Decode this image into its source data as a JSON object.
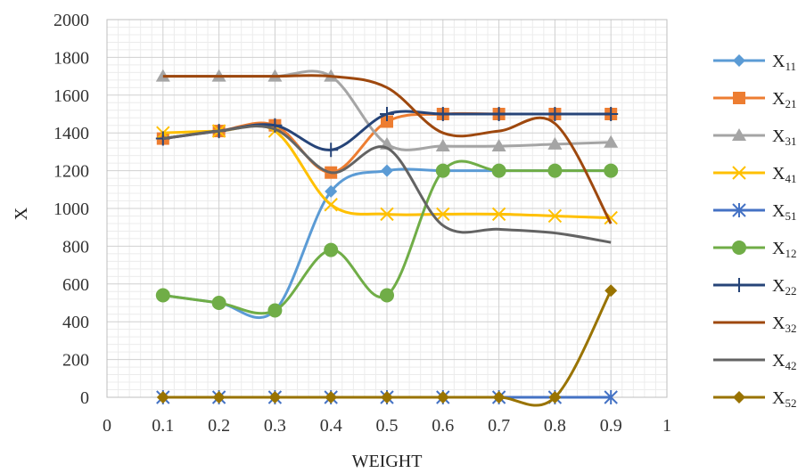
{
  "chart_data": {
    "type": "line",
    "title": "",
    "xlabel": "WEIGHT",
    "ylabel": "X",
    "xlim": [
      0,
      1
    ],
    "ylim": [
      0,
      2000
    ],
    "xticks": [
      "0",
      "0.1",
      "0.2",
      "0.3",
      "0.4",
      "0.5",
      "0.6",
      "0.7",
      "0.8",
      "0.9",
      "1"
    ],
    "yticks": [
      "0",
      "200",
      "400",
      "600",
      "800",
      "1000",
      "1200",
      "1400",
      "1600",
      "1800",
      "2000"
    ],
    "grid": true,
    "legend_position": "right",
    "x": [
      0.1,
      0.2,
      0.3,
      0.4,
      0.5,
      0.6,
      0.7,
      0.8,
      0.9
    ],
    "series": [
      {
        "name": "X",
        "sub": "11",
        "color": "#5b9bd5",
        "marker": "diamond",
        "values": [
          540,
          500,
          460,
          1090,
          1200,
          1200,
          1200,
          1200,
          1200
        ]
      },
      {
        "name": "X",
        "sub": "21",
        "color": "#ed7d31",
        "marker": "square",
        "values": [
          1370,
          1410,
          1440,
          1190,
          1460,
          1500,
          1500,
          1500,
          1500
        ]
      },
      {
        "name": "X",
        "sub": "31",
        "color": "#a5a5a5",
        "marker": "triangle",
        "values": [
          1700,
          1700,
          1700,
          1700,
          1340,
          1330,
          1330,
          1340,
          1350
        ]
      },
      {
        "name": "X",
        "sub": "41",
        "color": "#ffc000",
        "marker": "x",
        "values": [
          1400,
          1410,
          1410,
          1020,
          970,
          970,
          970,
          960,
          950
        ]
      },
      {
        "name": "X",
        "sub": "51",
        "color": "#4472c4",
        "marker": "star",
        "values": [
          0,
          0,
          0,
          0,
          0,
          0,
          0,
          0,
          0
        ]
      },
      {
        "name": "X",
        "sub": "12",
        "color": "#70ad47",
        "marker": "circle",
        "values": [
          540,
          500,
          460,
          780,
          540,
          1200,
          1200,
          1200,
          1200
        ]
      },
      {
        "name": "X",
        "sub": "22",
        "color": "#264478",
        "marker": "plus",
        "values": [
          1370,
          1410,
          1440,
          1310,
          1500,
          1500,
          1500,
          1500,
          1500
        ]
      },
      {
        "name": "X",
        "sub": "32",
        "color": "#9e480e",
        "marker": "none",
        "values": [
          1700,
          1700,
          1700,
          1700,
          1640,
          1400,
          1410,
          1450,
          920
        ]
      },
      {
        "name": "X",
        "sub": "42",
        "color": "#636363",
        "marker": "none",
        "values": [
          1370,
          1410,
          1420,
          1190,
          1320,
          910,
          890,
          870,
          820
        ]
      },
      {
        "name": "X",
        "sub": "52",
        "color": "#997300",
        "marker": "diamond",
        "values": [
          0,
          0,
          0,
          0,
          0,
          0,
          0,
          0,
          565
        ]
      }
    ]
  }
}
